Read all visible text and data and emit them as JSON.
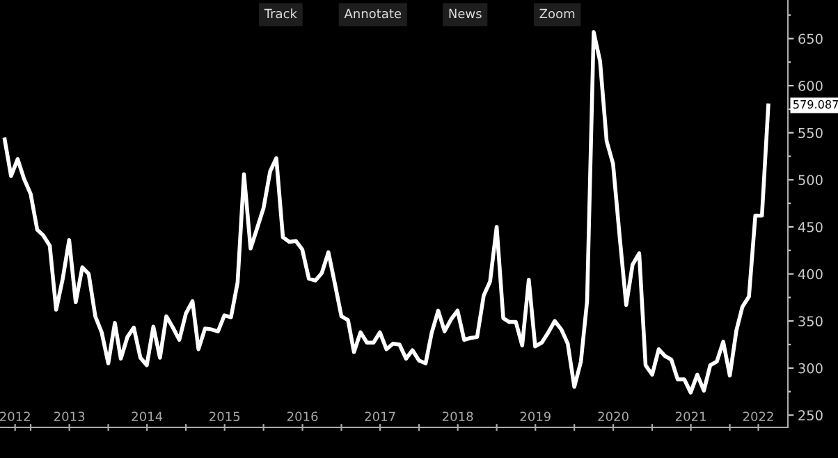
{
  "chart_data": {
    "type": "line",
    "x": [
      "2012-09",
      "2012-10",
      "2012-11",
      "2012-12",
      "2013-01",
      "2013-02",
      "2013-03",
      "2013-04",
      "2013-05",
      "2013-06",
      "2013-07",
      "2013-08",
      "2013-09",
      "2013-10",
      "2013-11",
      "2013-12",
      "2014-01",
      "2014-02",
      "2014-03",
      "2014-04",
      "2014-05",
      "2014-06",
      "2014-07",
      "2014-08",
      "2014-09",
      "2014-10",
      "2014-11",
      "2014-12",
      "2015-01",
      "2015-02",
      "2015-03",
      "2015-04",
      "2015-05",
      "2015-06",
      "2015-07",
      "2015-08",
      "2015-09",
      "2015-10",
      "2015-11",
      "2015-12",
      "2016-01",
      "2016-02",
      "2016-03",
      "2016-04",
      "2016-05",
      "2016-06",
      "2016-07",
      "2016-08",
      "2016-09",
      "2016-10",
      "2016-11",
      "2016-12",
      "2017-01",
      "2017-02",
      "2017-03",
      "2017-04",
      "2017-05",
      "2017-06",
      "2017-07",
      "2017-08",
      "2017-09",
      "2017-10",
      "2017-11",
      "2017-12",
      "2018-01",
      "2018-02",
      "2018-03",
      "2018-04",
      "2018-05",
      "2018-06",
      "2018-07",
      "2018-08",
      "2018-09",
      "2018-10",
      "2018-11",
      "2018-12",
      "2019-01",
      "2019-02",
      "2019-03",
      "2019-04",
      "2019-05",
      "2019-06",
      "2019-07",
      "2019-08",
      "2019-09",
      "2019-10",
      "2019-11",
      "2019-12",
      "2020-01",
      "2020-02",
      "2020-03",
      "2020-04",
      "2020-05",
      "2020-06",
      "2020-07",
      "2020-08",
      "2020-09",
      "2020-10",
      "2020-11",
      "2020-12",
      "2021-01",
      "2021-02",
      "2021-03",
      "2021-04",
      "2021-05",
      "2021-06",
      "2021-07",
      "2021-08",
      "2021-09",
      "2021-10",
      "2021-11",
      "2021-12",
      "2022-01",
      "2022-02",
      "2022-03",
      "2022-04",
      "2022-05",
      "2022-06",
      "2022-07"
    ],
    "series": [
      {
        "color": "#ffffff",
        "values": [
          543,
          504,
          522,
          501,
          485,
          447,
          441,
          430,
          362,
          395,
          436,
          370,
          407,
          400,
          355,
          338,
          305,
          348,
          310,
          333,
          343,
          311,
          303,
          344,
          311,
          355,
          343,
          330,
          358,
          371,
          320,
          342,
          341,
          339,
          356,
          354,
          391,
          506,
          427,
          448,
          470,
          509,
          523,
          439,
          434,
          435,
          426,
          395,
          393,
          401,
          423,
          390,
          355,
          351,
          317,
          338,
          327,
          327,
          338,
          320,
          326,
          325,
          310,
          319,
          308,
          305,
          337,
          361,
          339,
          352,
          361,
          330,
          332,
          333,
          377,
          392,
          450,
          353,
          349,
          349,
          324,
          394,
          323,
          327,
          338,
          350,
          341,
          326,
          280,
          307,
          371,
          657,
          626,
          541,
          517,
          440,
          367,
          410,
          422,
          303,
          293,
          320,
          313,
          309,
          288,
          288,
          274,
          293,
          276,
          303,
          307,
          328,
          292,
          340,
          365,
          376,
          462,
          462,
          579.087
        ]
      }
    ],
    "xlim": [
      "2012-08-10",
      "2022-10-01"
    ],
    "xticks": [
      {
        "value": "2013-01-01",
        "label": null
      },
      {
        "value": "2014-01-01",
        "label": null
      },
      {
        "value": "2015-01-01",
        "label": null
      },
      {
        "value": "2016-01-01",
        "label": null
      },
      {
        "value": "2017-01-01",
        "label": null
      },
      {
        "value": "2018-01-01",
        "label": null
      },
      {
        "value": "2019-01-01",
        "label": null
      },
      {
        "value": "2020-01-01",
        "label": null
      },
      {
        "value": "2021-01-01",
        "label": null
      },
      {
        "value": "2022-01-01",
        "label": null
      },
      {
        "value": "2012-10-20",
        "label": "2012"
      },
      {
        "value": "2013-07-02",
        "label": "2013"
      },
      {
        "value": "2014-07-02",
        "label": "2014"
      },
      {
        "value": "2015-07-02",
        "label": "2015"
      },
      {
        "value": "2016-07-02",
        "label": "2016"
      },
      {
        "value": "2017-07-02",
        "label": "2017"
      },
      {
        "value": "2018-07-02",
        "label": "2018"
      },
      {
        "value": "2019-07-02",
        "label": "2019"
      },
      {
        "value": "2020-07-02",
        "label": "2020"
      },
      {
        "value": "2021-07-02",
        "label": "2021"
      },
      {
        "value": "2022-05-15",
        "label": "2022"
      }
    ],
    "ylim": [
      237,
      691
    ],
    "yticks": [
      250,
      {
        "value": 275,
        "label": null
      },
      300,
      {
        "value": 325,
        "label": null
      },
      350,
      {
        "value": 375,
        "label": null
      },
      400,
      {
        "value": 425,
        "label": null
      },
      450,
      {
        "value": 475,
        "label": null
      },
      500,
      {
        "value": 525,
        "label": null
      },
      550,
      {
        "value": 575,
        "label": null
      },
      600,
      {
        "value": 625,
        "label": null
      },
      650,
      {
        "value": 675,
        "label": null
      }
    ],
    "annotations": [
      {
        "text": "579.087",
        "x": "2022-07",
        "y": 579.087
      },
      "Track",
      "Annotate",
      "News",
      "Zoom"
    ],
    "grid": false,
    "legend": false,
    "marker": "none",
    "line_style": "solid"
  }
}
